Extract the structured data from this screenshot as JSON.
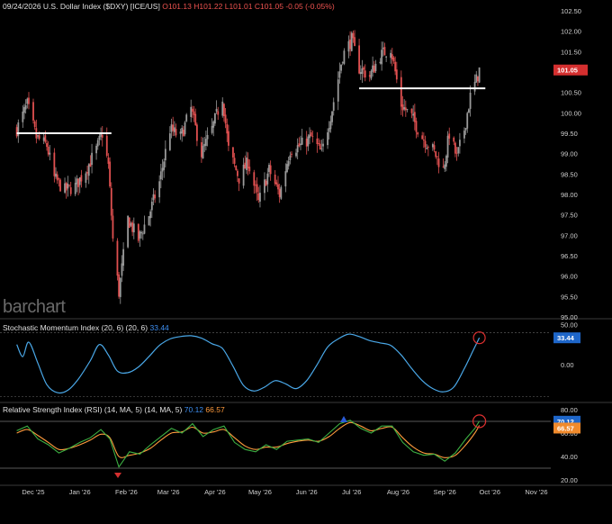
{
  "header": {
    "date": "09/24/2026",
    "name": "U.S. Dollar Index ($DXY) [ICE/US]",
    "open": "O101.13",
    "high": "H101.22",
    "low": "L101.01",
    "close": "C101.05",
    "change": "-0.05 (-0.05%)"
  },
  "brand": "barchart",
  "price_label": "101.05",
  "smi_label": {
    "title": "Stochastic Momentum Index (20, 6)",
    "params": "(20, 6)",
    "value": "33.44"
  },
  "rsi_label": {
    "title": "Relative Strength Index (RSI) (14, MA, 5)",
    "params": "(14, MA, 5)",
    "value1": "70.12",
    "value2": "66.57"
  },
  "colors": {
    "up": "#9a9a9a",
    "down": "#e05050",
    "smi": "#4aa8e8",
    "rsi": "#ff9b3d",
    "rsi_ma": "#3cb043",
    "level_line": "#ffffff",
    "circle": "#e03030"
  },
  "chart_data": [
    {
      "type": "candlestick",
      "title": "U.S. Dollar Index ($DXY) [ICE/US]",
      "x_tick_labels": [
        "Dec '25",
        "Jan '26",
        "Feb '26",
        "Mar '26",
        "Apr '26",
        "May '26",
        "Jun '26",
        "Jul '26",
        "Aug '26",
        "Sep '26",
        "Oct '26",
        "Nov '26"
      ],
      "y_ticks": [
        "95.00",
        "95.50",
        "96.00",
        "96.50",
        "97.00",
        "97.50",
        "98.00",
        "98.50",
        "99.00",
        "99.50",
        "100.00",
        "100.50",
        "101.00",
        "101.50",
        "102.00",
        "102.50"
      ],
      "ylim": [
        95.0,
        102.5
      ],
      "last_price": 101.05,
      "close_path": [
        [
          "Nov 20 '25",
          99.6
        ],
        [
          "Nov 27 '25",
          100.2
        ],
        [
          "Dec 3 '25",
          99.4
        ],
        [
          "Dec 10 '25",
          99.2
        ],
        [
          "Dec 15 '25",
          98.4
        ],
        [
          "Dec 22 '25",
          98.1
        ],
        [
          "Dec 29 '25",
          98.2
        ],
        [
          "Jan 5 '26",
          98.6
        ],
        [
          "Jan 12 '26",
          99.1
        ],
        [
          "Jan 16 '26",
          99.5
        ],
        [
          "Jan 20 '26",
          98.7
        ],
        [
          "Jan 23 '26",
          96.9
        ],
        [
          "Jan 27 '26",
          95.6
        ],
        [
          "Feb 2 '26",
          97.4
        ],
        [
          "Feb 9 '26",
          96.9
        ],
        [
          "Feb 16 '26",
          97.5
        ],
        [
          "Feb 23 '26",
          98.3
        ],
        [
          "Mar 2 '26",
          99.6
        ],
        [
          "Mar 9 '26",
          99.4
        ],
        [
          "Mar 16 '26",
          100.1
        ],
        [
          "Mar 23 '26",
          99.0
        ],
        [
          "Mar 30 '26",
          99.6
        ],
        [
          "Apr 6 '26",
          100.4
        ],
        [
          "Apr 10 '26",
          99.1
        ],
        [
          "Apr 17 '26",
          98.4
        ],
        [
          "Apr 23 '26",
          98.8
        ],
        [
          "Apr 30 '26",
          97.8
        ],
        [
          "May 7 '26",
          98.6
        ],
        [
          "May 14 '26",
          98.0
        ],
        [
          "May 21 '26",
          99.1
        ],
        [
          "May 28 '26",
          99.2
        ],
        [
          "Jun 4 '26",
          99.4
        ],
        [
          "Jun 11 '26",
          99.0
        ],
        [
          "Jun 18 '26",
          100.1
        ],
        [
          "Jun 25 '26",
          101.4
        ],
        [
          "Jul 1 '26",
          101.8
        ],
        [
          "Jul 6 '26",
          101.1
        ],
        [
          "Jul 13 '26",
          100.9
        ],
        [
          "Jul 20 '26",
          101.4
        ],
        [
          "Jul 27 '26",
          101.6
        ],
        [
          "Aug 3 '26",
          100.2
        ],
        [
          "Aug 10 '26",
          99.9
        ],
        [
          "Aug 17 '26",
          99.4
        ],
        [
          "Aug 24 '26",
          99.1
        ],
        [
          "Aug 31 '26",
          98.6
        ],
        [
          "Sep 4 '26",
          99.5
        ],
        [
          "Sep 9 '26",
          98.9
        ],
        [
          "Sep 14 '26",
          99.6
        ],
        [
          "Sep 18 '26",
          100.4
        ],
        [
          "Sep 22 '26",
          100.8
        ],
        [
          "Sep 24 '26",
          101.05
        ]
      ],
      "levels": [
        {
          "y": 99.5,
          "x_start": "Nov 20 '25",
          "x_end": "Jan 22 '26"
        },
        {
          "y": 100.6,
          "x_start": "Jul 6 '26",
          "x_end": "Sep 28 '26"
        }
      ]
    },
    {
      "type": "line",
      "title": "Stochastic Momentum Index (20, 6)",
      "y_ticks": [
        "50.00",
        "0.00"
      ],
      "ylim": [
        -45,
        55
      ],
      "last_value": 33.44,
      "series": [
        {
          "values": [
            [
              "Nov 20 '25",
              25
            ],
            [
              "Nov 24 '25",
              10
            ],
            [
              "Nov 28 '25",
              28
            ],
            [
              "Dec 4 '25",
              2
            ],
            [
              "Dec 10 '25",
              -25
            ],
            [
              "Dec 17 '25",
              -35
            ],
            [
              "Dec 24 '25",
              -32
            ],
            [
              "Dec 31 '25",
              -18
            ],
            [
              "Jan 8 '26",
              5
            ],
            [
              "Jan 14 '26",
              25
            ],
            [
              "Jan 20 '26",
              12
            ],
            [
              "Jan 26 '26",
              -8
            ],
            [
              "Feb 2 '26",
              -10
            ],
            [
              "Feb 9 '26",
              -3
            ],
            [
              "Feb 16 '26",
              10
            ],
            [
              "Feb 23 '26",
              24
            ],
            [
              "Mar 2 '26",
              32
            ],
            [
              "Mar 9 '26",
              35
            ],
            [
              "Mar 16 '26",
              36
            ],
            [
              "Mar 23 '26",
              33
            ],
            [
              "Mar 30 '26",
              26
            ],
            [
              "Apr 6 '26",
              20
            ],
            [
              "Apr 13 '26",
              -2
            ],
            [
              "Apr 20 '26",
              -26
            ],
            [
              "Apr 27 '26",
              -33
            ],
            [
              "May 4 '26",
              -28
            ],
            [
              "May 11 '26",
              -20
            ],
            [
              "May 18 '26",
              -24
            ],
            [
              "May 25 '26",
              -30
            ],
            [
              "Jun 1 '26",
              -20
            ],
            [
              "Jun 8 '26",
              0
            ],
            [
              "Jun 15 '26",
              22
            ],
            [
              "Jun 22 '26",
              32
            ],
            [
              "Jun 29 '26",
              38
            ],
            [
              "Jul 6 '26",
              35
            ],
            [
              "Jul 13 '26",
              30
            ],
            [
              "Jul 20 '26",
              27
            ],
            [
              "Jul 27 '26",
              24
            ],
            [
              "Aug 3 '26",
              12
            ],
            [
              "Aug 10 '26",
              -5
            ],
            [
              "Aug 17 '26",
              -20
            ],
            [
              "Aug 24 '26",
              -30
            ],
            [
              "Aug 31 '26",
              -34
            ],
            [
              "Sep 7 '26",
              -28
            ],
            [
              "Sep 14 '26",
              -5
            ],
            [
              "Sep 20 '26",
              18
            ],
            [
              "Sep 24 '26",
              33.44
            ]
          ]
        }
      ]
    },
    {
      "type": "line",
      "title": "Relative Strength Index (RSI) (14, MA, 5)",
      "y_ticks": [
        "80.00",
        "60.00",
        "40.00",
        "20.00"
      ],
      "ylim": [
        20,
        80
      ],
      "last_values": [
        70.12,
        66.57
      ],
      "series": [
        {
          "values": [
            [
              "Nov 20 '25",
              62
            ],
            [
              "Nov 27 '25",
              66
            ],
            [
              "Dec 4 '25",
              55
            ],
            [
              "Dec 11 '25",
              50
            ],
            [
              "Dec 18 '25",
              43
            ],
            [
              "Dec 25 '25",
              47
            ],
            [
              "Jan 1 '26",
              52
            ],
            [
              "Jan 8 '26",
              56
            ],
            [
              "Jan 15 '26",
              63
            ],
            [
              "Jan 21 '26",
              55
            ],
            [
              "Jan 27 '26",
              31
            ],
            [
              "Feb 3 '26",
              44
            ],
            [
              "Feb 10 '26",
              42
            ],
            [
              "Feb 17 '26",
              50
            ],
            [
              "Feb 24 '26",
              57
            ],
            [
              "Mar 3 '26",
              64
            ],
            [
              "Mar 10 '26",
              60
            ],
            [
              "Mar 17 '26",
              68
            ],
            [
              "Mar 24 '26",
              57
            ],
            [
              "Mar 31 '26",
              63
            ],
            [
              "Apr 7 '26",
              66
            ],
            [
              "Apr 14 '26",
              52
            ],
            [
              "Apr 21 '26",
              46
            ],
            [
              "Apr 28 '26",
              44
            ],
            [
              "May 5 '26",
              50
            ],
            [
              "May 12 '26",
              46
            ],
            [
              "May 19 '26",
              53
            ],
            [
              "May 26 '26",
              54
            ],
            [
              "Jun 2 '26",
              55
            ],
            [
              "Jun 9 '26",
              52
            ],
            [
              "Jun 16 '26",
              60
            ],
            [
              "Jun 23 '26",
              68
            ],
            [
              "Jun 30 '26",
              71
            ],
            [
              "Jul 7 '26",
              64
            ],
            [
              "Jul 14 '26",
              60
            ],
            [
              "Jul 21 '26",
              66
            ],
            [
              "Jul 28 '26",
              66
            ],
            [
              "Aug 4 '26",
              52
            ],
            [
              "Aug 11 '26",
              44
            ],
            [
              "Aug 18 '26",
              41
            ],
            [
              "Aug 25 '26",
              42
            ],
            [
              "Sep 1 '26",
              36
            ],
            [
              "Sep 8 '26",
              43
            ],
            [
              "Sep 15 '26",
              55
            ],
            [
              "Sep 21 '26",
              64
            ],
            [
              "Sep 24 '26",
              70.12
            ]
          ]
        },
        {
          "values": [
            [
              "Nov 20 '25",
              60
            ],
            [
              "Nov 27 '25",
              63
            ],
            [
              "Dec 4 '25",
              58
            ],
            [
              "Dec 11 '25",
              52
            ],
            [
              "Dec 18 '25",
              46
            ],
            [
              "Dec 25 '25",
              47
            ],
            [
              "Jan 1 '26",
              50
            ],
            [
              "Jan 8 '26",
              54
            ],
            [
              "Jan 15 '26",
              59
            ],
            [
              "Jan 21 '26",
              56
            ],
            [
              "Jan 27 '26",
              40
            ],
            [
              "Feb 3 '26",
              41
            ],
            [
              "Feb 10 '26",
              43
            ],
            [
              "Feb 17 '26",
              47
            ],
            [
              "Feb 24 '26",
              54
            ],
            [
              "Mar 3 '26",
              60
            ],
            [
              "Mar 10 '26",
              61
            ],
            [
              "Mar 17 '26",
              65
            ],
            [
              "Mar 24 '26",
              60
            ],
            [
              "Mar 31 '26",
              61
            ],
            [
              "Apr 7 '26",
              63
            ],
            [
              "Apr 14 '26",
              56
            ],
            [
              "Apr 21 '26",
              49
            ],
            [
              "Apr 28 '26",
              46
            ],
            [
              "May 5 '26",
              48
            ],
            [
              "May 12 '26",
              48
            ],
            [
              "May 19 '26",
              51
            ],
            [
              "May 26 '26",
              53
            ],
            [
              "Jun 2 '26",
              54
            ],
            [
              "Jun 9 '26",
              53
            ],
            [
              "Jun 16 '26",
              57
            ],
            [
              "Jun 23 '26",
              64
            ],
            [
              "Jun 30 '26",
              69
            ],
            [
              "Jul 7 '26",
              66
            ],
            [
              "Jul 14 '26",
              62
            ],
            [
              "Jul 21 '26",
              64
            ],
            [
              "Jul 28 '26",
              65
            ],
            [
              "Aug 4 '26",
              56
            ],
            [
              "Aug 11 '26",
              48
            ],
            [
              "Aug 18 '26",
              43
            ],
            [
              "Aug 25 '26",
              42
            ],
            [
              "Sep 1 '26",
              39
            ],
            [
              "Sep 8 '26",
              41
            ],
            [
              "Sep 15 '26",
              50
            ],
            [
              "Sep 21 '26",
              60
            ],
            [
              "Sep 24 '26",
              66.57
            ]
          ]
        }
      ],
      "reference_lines": [
        70,
        30
      ]
    }
  ]
}
